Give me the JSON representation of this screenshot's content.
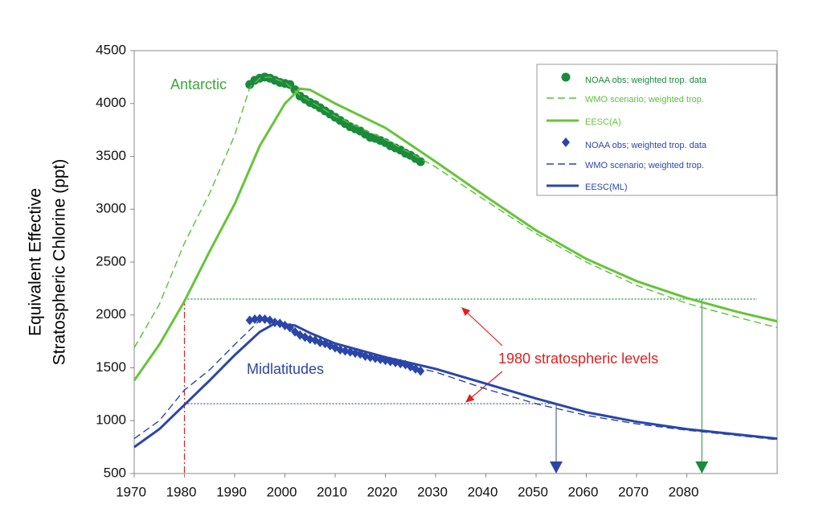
{
  "chart_data": {
    "type": "line",
    "ylabel": [
      "Equivalent Effective",
      "Stratospheric Chlorine (ppt)"
    ],
    "xlim": [
      1970,
      2098
    ],
    "ylim": [
      500,
      4500
    ],
    "xticks": [
      1970,
      1980,
      1990,
      2000,
      2010,
      2020,
      2030,
      2040,
      2050,
      2060,
      2070,
      2080
    ],
    "yticks": [
      500,
      1000,
      1500,
      2000,
      2500,
      3000,
      3500,
      4000,
      4500
    ],
    "legend": "upper right",
    "annotations": {
      "antarctic": "Antarctic",
      "midlatitudes": "Midlatitudes",
      "levels": "1980 stratospheric levels"
    },
    "reference_year": 1980,
    "reference_levels": [
      {
        "value": 2150,
        "return_year": 2083,
        "color": "#1a8a3c"
      },
      {
        "value": 1160,
        "return_year": 2054,
        "color": "#2b45a8"
      }
    ],
    "series": [
      {
        "name": "NOAA obs; weighted trop. data",
        "color": "#1a8a3c",
        "kind": "scatter",
        "marker": "circle",
        "x": [
          1993,
          1994,
          1995,
          1996,
          1997,
          1998,
          1999,
          2000,
          2001,
          2002,
          2003,
          2004,
          2005,
          2006,
          2007,
          2008,
          2009,
          2010,
          2011,
          2012,
          2013,
          2014,
          2015,
          2016,
          2017,
          2018,
          2019,
          2020,
          2021,
          2022,
          2023,
          2024,
          2025,
          2026,
          2027
        ],
        "values": [
          4180,
          4220,
          4240,
          4250,
          4240,
          4220,
          4200,
          4190,
          4180,
          4130,
          4070,
          4040,
          4010,
          3990,
          3960,
          3930,
          3900,
          3870,
          3840,
          3810,
          3780,
          3760,
          3740,
          3710,
          3680,
          3670,
          3650,
          3630,
          3600,
          3580,
          3560,
          3530,
          3510,
          3480,
          3450
        ]
      },
      {
        "name": "WMO scenario; weighted trop.",
        "color": "#5cbf3a",
        "kind": "line",
        "dash": true,
        "x": [
          1970,
          1975,
          1980,
          1985,
          1990,
          1993,
          1995,
          1997,
          2000,
          2003,
          2010,
          2020,
          2030,
          2040,
          2050,
          2060,
          2070,
          2080,
          2090,
          2098
        ],
        "values": [
          1690,
          2100,
          2680,
          3150,
          3700,
          4150,
          4240,
          4250,
          4200,
          4080,
          3880,
          3660,
          3400,
          3080,
          2770,
          2500,
          2280,
          2110,
          1980,
          1880
        ]
      },
      {
        "name": "EESC(A)",
        "color": "#66c43a",
        "kind": "line",
        "dash": false,
        "x": [
          1970,
          1975,
          1980,
          1985,
          1990,
          1995,
          2000,
          2003,
          2005,
          2010,
          2020,
          2030,
          2040,
          2050,
          2060,
          2070,
          2080,
          2090,
          2098
        ],
        "values": [
          1380,
          1720,
          2130,
          2600,
          3050,
          3600,
          4000,
          4140,
          4130,
          4000,
          3770,
          3450,
          3120,
          2800,
          2530,
          2320,
          2160,
          2030,
          1940
        ]
      },
      {
        "name": "NOAA obs; weighted trop. data",
        "color": "#2b45a8",
        "kind": "scatter",
        "marker": "diamond",
        "x": [
          1993,
          1994,
          1995,
          1996,
          1997,
          1998,
          1999,
          2000,
          2001,
          2002,
          2003,
          2004,
          2005,
          2006,
          2007,
          2008,
          2009,
          2010,
          2011,
          2012,
          2013,
          2014,
          2015,
          2016,
          2017,
          2018,
          2019,
          2020,
          2021,
          2022,
          2023,
          2024,
          2025,
          2026,
          2027
        ],
        "values": [
          1950,
          1960,
          1965,
          1960,
          1950,
          1930,
          1920,
          1900,
          1880,
          1840,
          1810,
          1790,
          1770,
          1760,
          1740,
          1730,
          1710,
          1690,
          1670,
          1660,
          1650,
          1640,
          1630,
          1610,
          1600,
          1590,
          1580,
          1570,
          1560,
          1550,
          1540,
          1530,
          1510,
          1490,
          1470
        ]
      },
      {
        "name": "WMO scenario; weighted trop.",
        "color": "#2b45a8",
        "kind": "line",
        "dash": true,
        "x": [
          1970,
          1975,
          1980,
          1985,
          1990,
          1995,
          1997,
          2000,
          2005,
          2010,
          2020,
          2030,
          2040,
          2050,
          2060,
          2070,
          2080,
          2090,
          2098
        ],
        "values": [
          830,
          1000,
          1290,
          1480,
          1720,
          1950,
          1960,
          1890,
          1780,
          1690,
          1570,
          1460,
          1300,
          1160,
          1050,
          970,
          910,
          860,
          820
        ]
      },
      {
        "name": "EESC(ML)",
        "color": "#2b45a8",
        "kind": "line",
        "dash": false,
        "x": [
          1970,
          1975,
          1980,
          1985,
          1990,
          1995,
          1998,
          2002,
          2005,
          2010,
          2020,
          2030,
          2040,
          2050,
          2060,
          2070,
          2080,
          2090,
          2098
        ],
        "values": [
          750,
          920,
          1150,
          1380,
          1620,
          1840,
          1920,
          1900,
          1830,
          1730,
          1600,
          1490,
          1350,
          1210,
          1080,
          990,
          920,
          870,
          830
        ]
      }
    ]
  }
}
